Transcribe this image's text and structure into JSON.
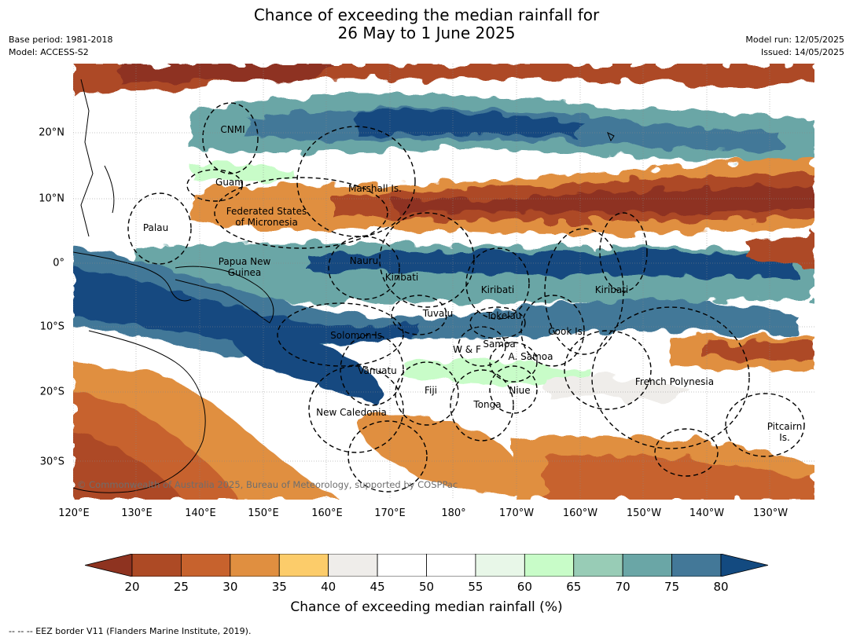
{
  "title": {
    "line1": "Chance of exceeding the median rainfall for",
    "line2": "26 May to 1 June 2025"
  },
  "meta_left": {
    "base_period": "Base period: 1981-2018",
    "model": "Model: ACCESS-S2"
  },
  "meta_right": {
    "model_run": "Model run: 12/05/2025",
    "issued": "Issued: 14/05/2025"
  },
  "latitude_labels": [
    "20°N",
    "10°N",
    "0°",
    "10°S",
    "20°S",
    "30°S"
  ],
  "longitude_labels": [
    "120°E",
    "130°E",
    "140°E",
    "150°E",
    "160°E",
    "170°E",
    "180°",
    "170°W",
    "160°W",
    "150°W",
    "140°W",
    "130°W"
  ],
  "regions": {
    "cnmi": "CNMI",
    "guam": "Guam",
    "marshall": "Marshall Is.",
    "fsm_line1": "Federated States",
    "fsm_line2": "of Micronesia",
    "palau": "Palau",
    "png_line1": "Papua New",
    "png_line2": "Guinea",
    "nauru": "Nauru",
    "kiribati_west": "Kiribati",
    "kiribati_central": "Kiribati",
    "kiribati_east": "Kiribati",
    "tuvalu": "Tuvalu",
    "tokelau": "Tokelau",
    "cook": "Cook Is.",
    "solomon": "Solomon Is.",
    "samoa": "Samoa",
    "wf": "W & F",
    "american_samoa": "A. Samoa",
    "vanuatu": "Vanuatu",
    "fiji": "Fiji",
    "niue": "Niue",
    "tonga": "Tonga",
    "new_caledonia": "New Caledonia",
    "french_polynesia": "French Polynesia",
    "pitcairn_line1": "Pitcairn",
    "pitcairn_line2": "Is."
  },
  "copyright": "© Commonwealth of Australia 2025, Bureau of Meteorology, supported by COSPPac",
  "colorbar": {
    "ticks": [
      "20",
      "25",
      "30",
      "35",
      "40",
      "45",
      "50",
      "55",
      "60",
      "65",
      "70",
      "75",
      "80"
    ],
    "label": "Chance of exceeding median rainfall (%)",
    "under_color": "#8e3320",
    "over_color": "#134a80",
    "colors": [
      "#ad4a25",
      "#c7622d",
      "#e08f40",
      "#fccc6a",
      "#efedea",
      "#ffffff",
      "#ffffff",
      "#e8f7e8",
      "#c8fcc8",
      "#98ccb6",
      "#6aa6a6",
      "#437898"
    ]
  },
  "footnote": "-- -- -- EEZ border V11 (Flanders Marine Institute, 2019)."
}
